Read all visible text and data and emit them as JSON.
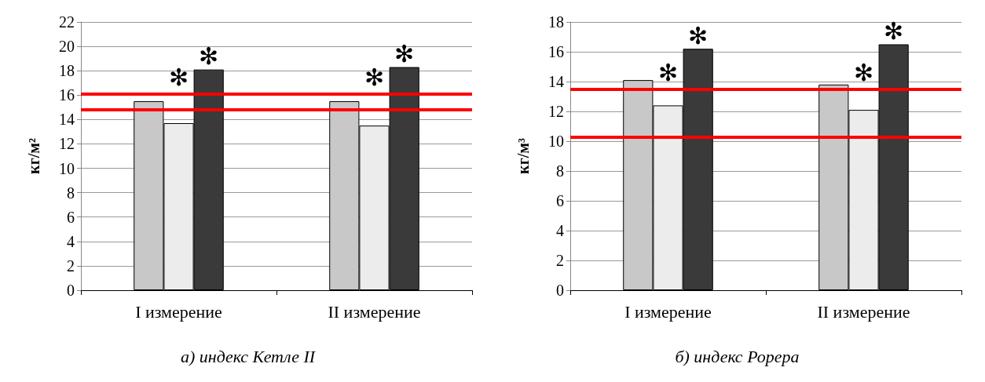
{
  "chart_data": [
    {
      "type": "bar",
      "title": "а) индекс Кетле II",
      "ylabel": "кг/м²",
      "categories": [
        "I измерение",
        "II измерение"
      ],
      "series": [
        {
          "color": "#c8c8c8",
          "values": [
            15.5,
            15.5
          ]
        },
        {
          "color": "#ececec",
          "values": [
            13.7,
            13.5
          ],
          "value_labels": [
            "✻",
            "✻"
          ]
        },
        {
          "color": "#3a3a3a",
          "values": [
            18.1,
            18.3
          ],
          "value_labels": [
            "✻",
            "✻"
          ]
        }
      ],
      "ylim": [
        0,
        22
      ],
      "yticks": [
        0,
        2,
        4,
        6,
        8,
        10,
        12,
        14,
        16,
        18,
        20,
        22
      ],
      "grid": "y",
      "ref_lines": [
        {
          "axis": "y",
          "value": 16.1,
          "color": "#ff0000"
        },
        {
          "axis": "y",
          "value": 14.8,
          "color": "#ff0000"
        }
      ]
    },
    {
      "type": "bar",
      "title": "б) индекс Рорера",
      "ylabel": "кг/м³",
      "categories": [
        "I измерение",
        "II измерение"
      ],
      "series": [
        {
          "color": "#c8c8c8",
          "values": [
            14.1,
            13.8
          ]
        },
        {
          "color": "#ececec",
          "values": [
            12.4,
            12.1
          ],
          "value_labels": [
            "✻",
            "✻"
          ]
        },
        {
          "color": "#3a3a3a",
          "values": [
            16.2,
            16.5
          ],
          "value_labels": [
            "✻",
            "✻"
          ]
        }
      ],
      "ylim": [
        0,
        18
      ],
      "yticks": [
        0,
        2,
        4,
        6,
        8,
        10,
        12,
        14,
        16,
        18
      ],
      "grid": "y",
      "ref_lines": [
        {
          "axis": "y",
          "value": 13.5,
          "color": "#ff0000"
        },
        {
          "axis": "y",
          "value": 10.3,
          "color": "#ff0000"
        }
      ]
    }
  ]
}
